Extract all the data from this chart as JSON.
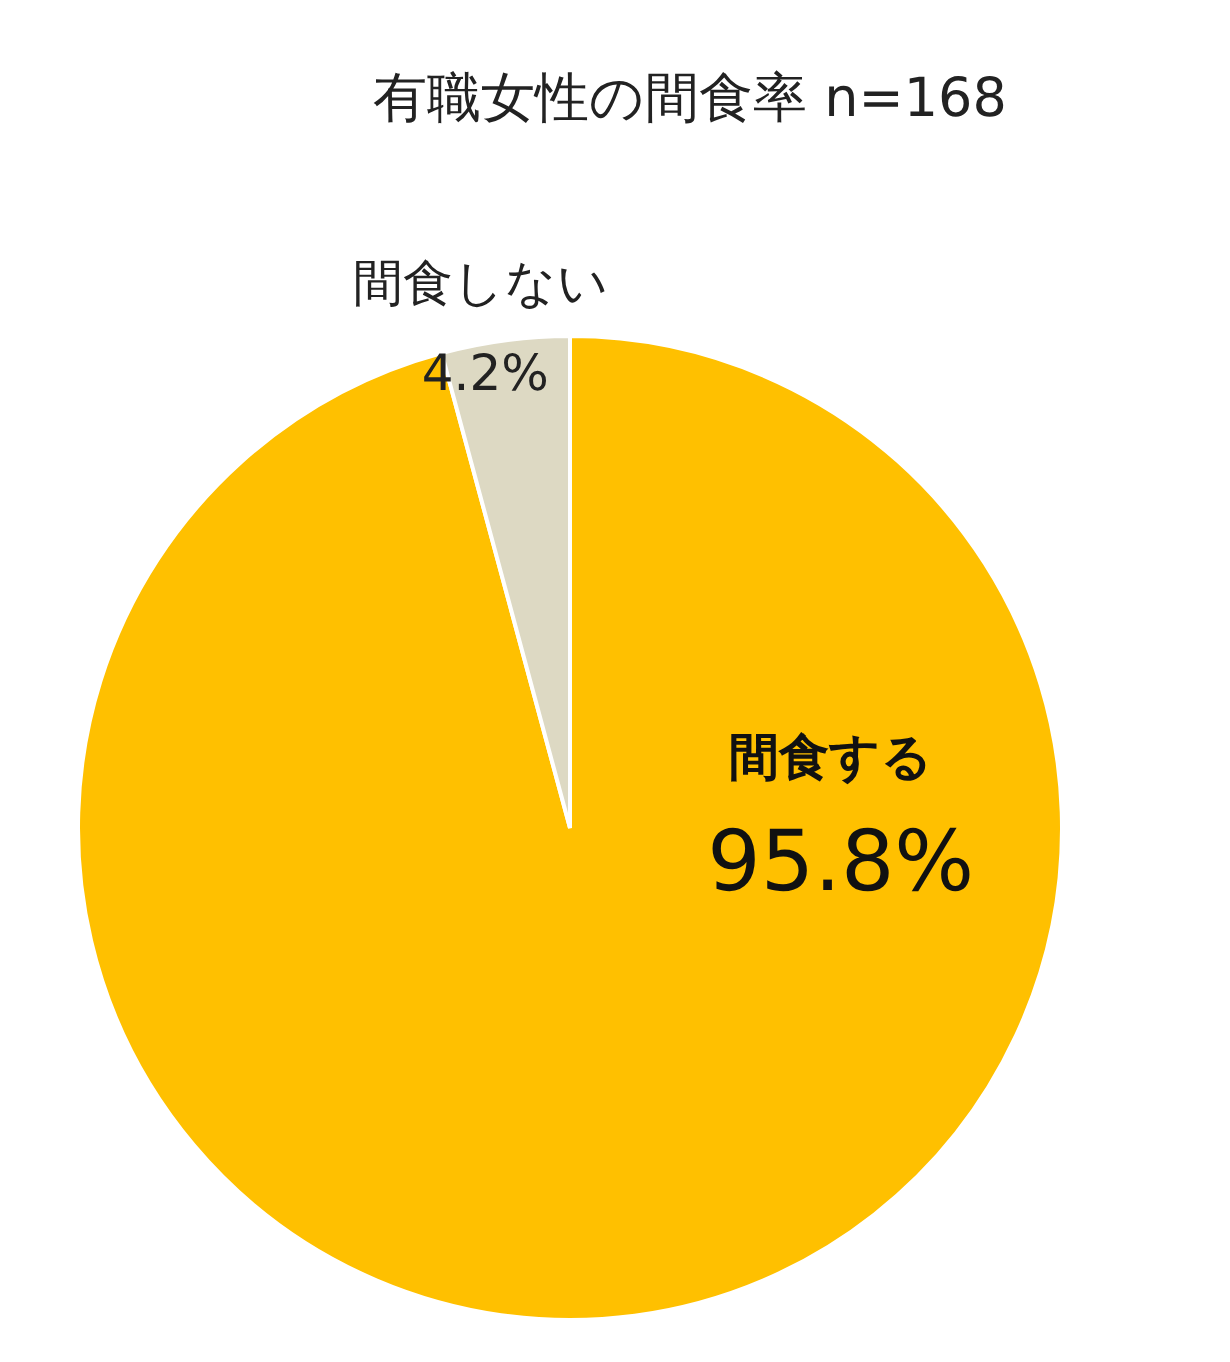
{
  "chart_data": {
    "type": "pie",
    "title": "有職女性の間食率  n=168",
    "categories": [
      "間食する",
      "間食しない"
    ],
    "values": [
      95.8,
      4.2
    ],
    "colors": [
      "#ffc000",
      "#ddd9c3"
    ],
    "value_labels": [
      "95.8%",
      "4.2%"
    ]
  }
}
